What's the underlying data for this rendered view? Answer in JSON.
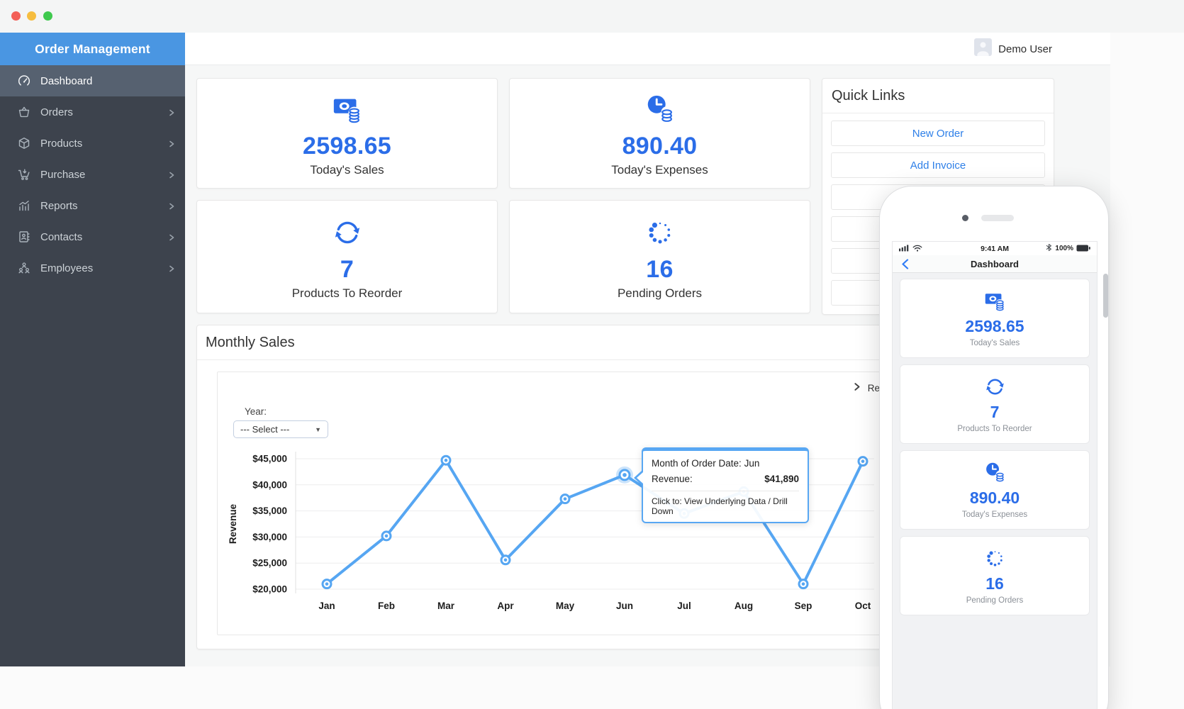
{
  "window_chrome": {
    "buttons": [
      "close",
      "minimize",
      "zoom"
    ]
  },
  "topbar": {
    "user": "Demo User"
  },
  "sidebar": {
    "title": "Order Management",
    "items": [
      {
        "label": "Dashboard",
        "icon": "dashboard-icon",
        "active": true,
        "chevron": false
      },
      {
        "label": "Orders",
        "icon": "orders-icon",
        "active": false,
        "chevron": true
      },
      {
        "label": "Products",
        "icon": "products-icon",
        "active": false,
        "chevron": true
      },
      {
        "label": "Purchase",
        "icon": "purchase-icon",
        "active": false,
        "chevron": true
      },
      {
        "label": "Reports",
        "icon": "reports-icon",
        "active": false,
        "chevron": true
      },
      {
        "label": "Contacts",
        "icon": "contacts-icon",
        "active": false,
        "chevron": true
      },
      {
        "label": "Employees",
        "icon": "employees-icon",
        "active": false,
        "chevron": true
      }
    ]
  },
  "stats": [
    {
      "value": "2598.65",
      "label": "Today's Sales",
      "icon": "cash-icon"
    },
    {
      "value": "890.40",
      "label": "Today's Expenses",
      "icon": "expenses-clock-icon"
    },
    {
      "value": "7",
      "label": "Products To Reorder",
      "icon": "reorder-sync-icon"
    },
    {
      "value": "16",
      "label": "Pending Orders",
      "icon": "pending-spinner-icon"
    }
  ],
  "quick_links": {
    "title": "Quick Links",
    "links": [
      {
        "label": "New Order"
      },
      {
        "label": "Add Invoice"
      },
      {
        "label": ""
      },
      {
        "label": ""
      },
      {
        "label": ""
      },
      {
        "label": ""
      }
    ]
  },
  "monthly_sales": {
    "title": "Monthly Sales",
    "year_label": "Year:",
    "year_select_value": "--- Select ---",
    "legend_truncated": "Re"
  },
  "chart_data": {
    "type": "line",
    "title": "Monthly Sales",
    "x": [
      "Jan",
      "Feb",
      "Mar",
      "Apr",
      "May",
      "Jun",
      "Jul",
      "Aug",
      "Sep",
      "Oct"
    ],
    "series": [
      {
        "name": "Revenue",
        "values": [
          21000,
          30200,
          44700,
          25600,
          37300,
          41890,
          34500,
          38700,
          21000,
          44500
        ]
      }
    ],
    "ylabel": "Revenue",
    "ylim": [
      20000,
      45000
    ],
    "yticks": [
      20000,
      25000,
      30000,
      35000,
      40000,
      45000
    ],
    "ytick_labels": [
      "$20,000",
      "$25,000",
      "$30,000",
      "$35,000",
      "$40,000",
      "$45,000"
    ],
    "grid": true,
    "legend_position": "top-right",
    "selected_point": {
      "x": "Jun",
      "value": 41890,
      "index": 5
    }
  },
  "tooltip": {
    "row1_label": "Month of Order Date:",
    "row1_value": "Jun",
    "row2_label": "Revenue:",
    "row2_value": "$41,890",
    "row3": "Click to: View Underlying Data / Drill Down"
  },
  "phone": {
    "status_time": "9:41 AM",
    "battery": "100%",
    "nav_title": "Dashboard",
    "cards": [
      {
        "value": "2598.65",
        "label": "Today's Sales",
        "icon": "cash-icon"
      },
      {
        "value": "7",
        "label": "Products To Reorder",
        "icon": "reorder-sync-icon"
      },
      {
        "value": "890.40",
        "label": "Today's Expenses",
        "icon": "expenses-clock-icon"
      },
      {
        "value": "16",
        "label": "Pending Orders",
        "icon": "pending-spinner-icon"
      }
    ]
  },
  "colors": {
    "accent": "#2b6de8",
    "link_blue": "#2f80e8",
    "chart_line": "#56a6f2",
    "sidebar_header": "#4a96e2",
    "sidebar_bg": "#3d434d",
    "sidebar_active": "#566170",
    "tooltip_border": "#58a7f3"
  }
}
